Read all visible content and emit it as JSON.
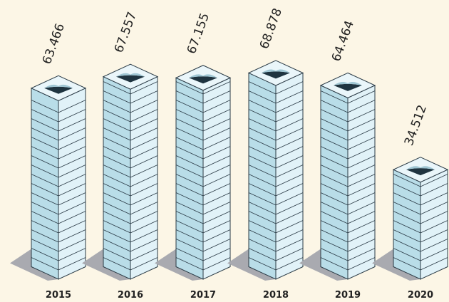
{
  "chart_data": {
    "type": "bar3d",
    "categories": [
      "2015",
      "2016",
      "2017",
      "2018",
      "2019",
      "2020"
    ],
    "values": [
      63.466,
      67.557,
      67.155,
      68.878,
      64.464,
      34.512
    ],
    "value_labels": [
      "63.466",
      "67.557",
      "67.155",
      "68.878",
      "64.464",
      "34.512"
    ],
    "color": "#b9dde8"
  }
}
